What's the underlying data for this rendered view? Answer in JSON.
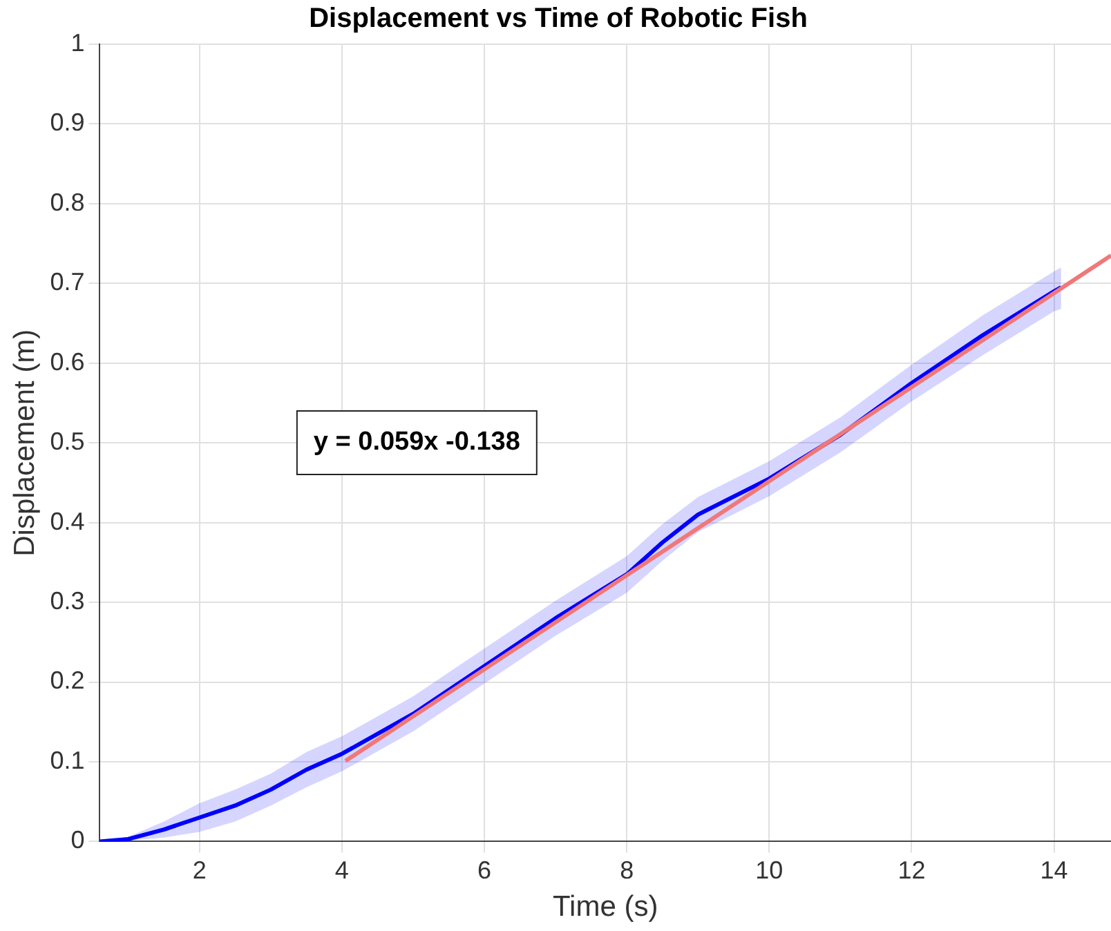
{
  "chart_data": {
    "type": "line",
    "title": "Displacement vs Time of Robotic Fish",
    "xlabel": "Time (s)",
    "ylabel": "Displacement (m)",
    "xlim": [
      0.6,
      14.8
    ],
    "ylim": [
      0,
      1
    ],
    "xticks": [
      2,
      4,
      6,
      8,
      10,
      12,
      14
    ],
    "yticks": [
      0,
      0.1,
      0.2,
      0.3,
      0.4,
      0.5,
      0.6,
      0.7,
      0.8,
      0.9,
      1
    ],
    "grid": true,
    "legend": false,
    "annotations": [
      "y = 0.059x -0.138"
    ],
    "series": [
      {
        "color": "#0000ff",
        "x": [
          0.6,
          1,
          1.5,
          2,
          2.5,
          3,
          3.5,
          4,
          5,
          6,
          7,
          8,
          8.5,
          9,
          10,
          11,
          12,
          13,
          14,
          14.1
        ],
        "values": [
          0,
          0.003,
          0.015,
          0.03,
          0.045,
          0.065,
          0.09,
          0.11,
          0.16,
          0.22,
          0.28,
          0.335,
          0.375,
          0.41,
          0.455,
          0.51,
          0.575,
          0.635,
          0.69,
          0.695
        ],
        "lower": [
          0,
          0.001,
          0.005,
          0.012,
          0.025,
          0.045,
          0.068,
          0.088,
          0.138,
          0.198,
          0.258,
          0.312,
          0.352,
          0.388,
          0.433,
          0.488,
          0.552,
          0.61,
          0.665,
          0.668
        ],
        "upper": [
          0,
          0.006,
          0.025,
          0.048,
          0.065,
          0.085,
          0.112,
          0.132,
          0.182,
          0.242,
          0.302,
          0.358,
          0.398,
          0.432,
          0.477,
          0.532,
          0.598,
          0.66,
          0.715,
          0.72
        ]
      },
      {
        "color": "#f07878",
        "x": [
          4.05,
          14.8
        ],
        "values": [
          0.101,
          0.735
        ]
      }
    ]
  }
}
